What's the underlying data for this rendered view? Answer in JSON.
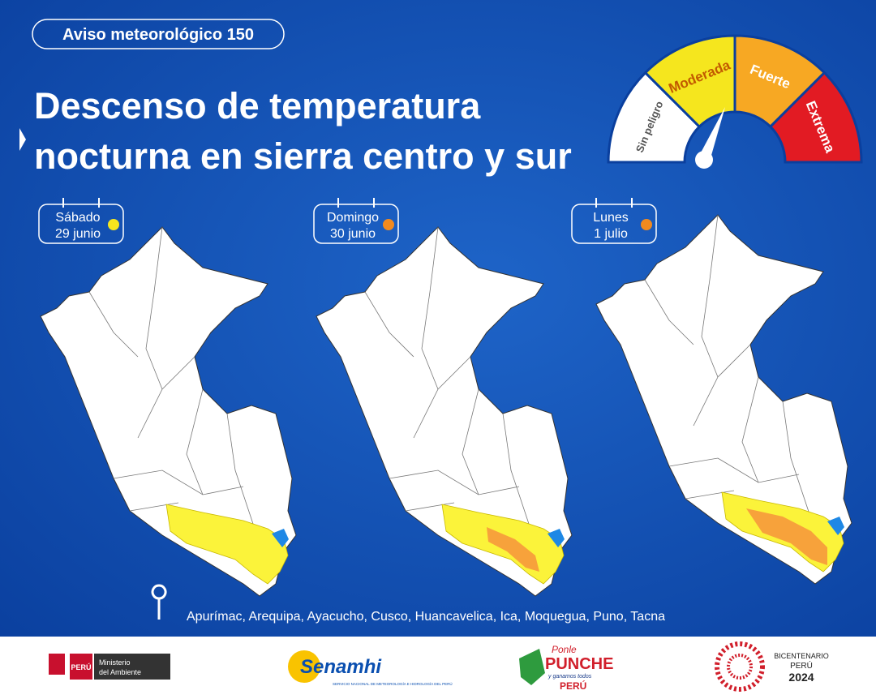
{
  "header": {
    "badge": "Aviso meteorológico 150",
    "title_line1": "Descenso de temperatura",
    "title_line2": "nocturna en sierra centro y sur"
  },
  "gauge": {
    "levels": [
      "Sin peligro",
      "Moderada",
      "Fuerte",
      "Extrema"
    ]
  },
  "days": [
    {
      "day": "Sábado",
      "date": "29 junio"
    },
    {
      "day": "Domingo",
      "date": "30 junio"
    },
    {
      "day": "Lunes",
      "date": "1 julio"
    }
  ],
  "regions": "Apurímac, Arequipa, Ayacucho, Cusco, Huancavelica, Ica, Moquegua, Puno, Tacna",
  "footer": {
    "peru": "PERÚ",
    "ministry_line1": "Ministerio",
    "ministry_line2": "del Ambiente",
    "senamhi": "Senamhi",
    "senamhi_sub": "SERVICIO NACIONAL DE METEOROLOGÍA E HIDROLOGÍA DEL PERÚ",
    "punche_top": "Ponle",
    "punche": "PUNCHE",
    "punche_sub": "y ganamos todos",
    "punche_peru": "PERÚ",
    "bicentenario": "BICENTENARIO",
    "bicentenario_country": "PERÚ",
    "bicentenario_year": "2024"
  }
}
